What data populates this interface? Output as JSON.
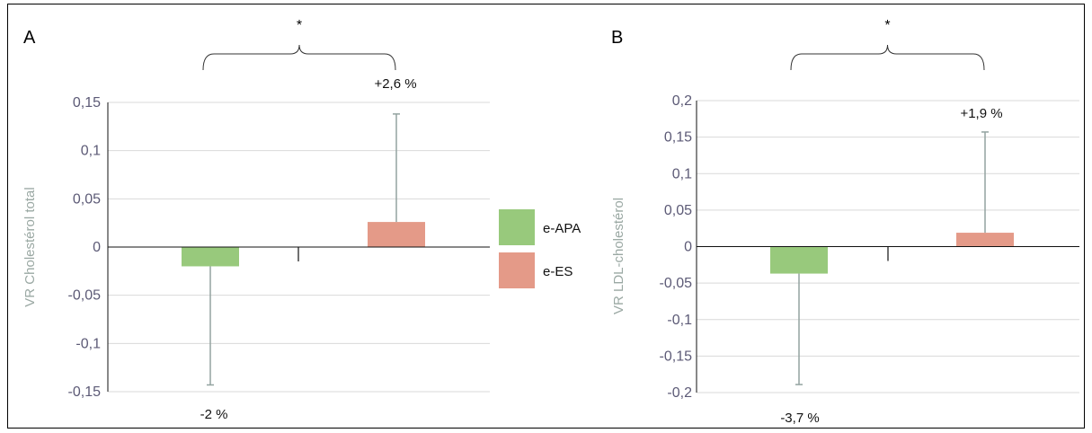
{
  "colors": {
    "e_APA": "#98c97c",
    "e_ES": "#e49a88",
    "error_bar": "#93a3a0",
    "grid": "#d9d9d9",
    "axis": "#111111"
  },
  "legend": {
    "items": [
      {
        "label": "e-APA",
        "color_key": "e_APA"
      },
      {
        "label": "e-ES",
        "color_key": "e_ES"
      }
    ]
  },
  "chart_data": [
    {
      "type": "bar",
      "panel": "A",
      "ylabel": "VR Cholestérol total",
      "ylim": [
        -0.15,
        0.15
      ],
      "yticks": [
        {
          "v": 0.15,
          "t": "0,15"
        },
        {
          "v": 0.1,
          "t": "0,1"
        },
        {
          "v": 0.05,
          "t": "0,05"
        },
        {
          "v": 0,
          "t": "0"
        },
        {
          "v": -0.05,
          "t": "-0,05"
        },
        {
          "v": -0.1,
          "t": "-0,1"
        },
        {
          "v": -0.15,
          "t": "-0,15"
        }
      ],
      "grid": true,
      "significance": "*",
      "series": [
        {
          "name": "e-APA",
          "value": -0.02,
          "error_low": -0.143,
          "label": "-2 %"
        },
        {
          "name": "e-ES",
          "value": 0.026,
          "error_high": 0.138,
          "label": "+2,6 %"
        }
      ]
    },
    {
      "type": "bar",
      "panel": "B",
      "ylabel": "VR LDL-cholestérol",
      "ylim": [
        -0.2,
        0.2
      ],
      "yticks": [
        {
          "v": 0.2,
          "t": "0,2"
        },
        {
          "v": 0.15,
          "t": "0,15"
        },
        {
          "v": 0.1,
          "t": "0,1"
        },
        {
          "v": 0.05,
          "t": "0,05"
        },
        {
          "v": 0,
          "t": "0"
        },
        {
          "v": -0.05,
          "t": "-0,05"
        },
        {
          "v": -0.1,
          "t": "-0,1"
        },
        {
          "v": -0.15,
          "t": "-0,15"
        },
        {
          "v": -0.2,
          "t": "-0,2"
        }
      ],
      "grid": true,
      "significance": "*",
      "series": [
        {
          "name": "e-APA",
          "value": -0.037,
          "error_low": -0.189,
          "label": "-3,7 %"
        },
        {
          "name": "e-ES",
          "value": 0.019,
          "error_high": 0.157,
          "label": "+1,9 %"
        }
      ]
    }
  ]
}
